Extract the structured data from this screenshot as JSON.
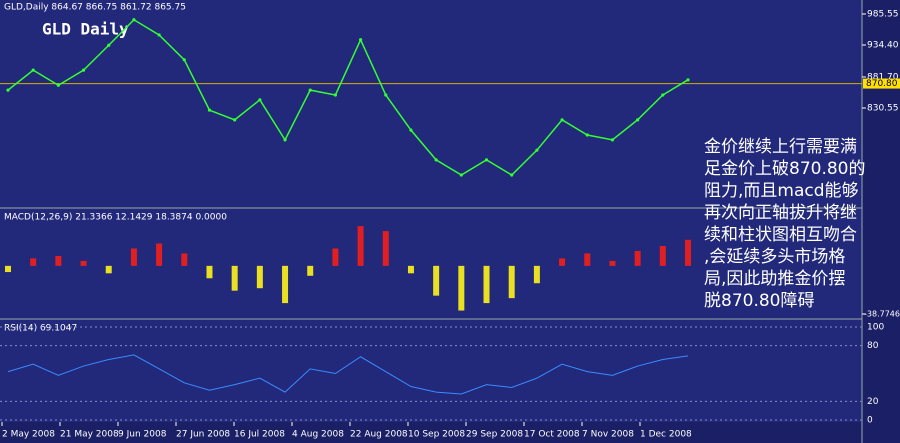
{
  "header": "GLD,Daily  864.67 866.75 861.72 865.75",
  "title": "GLD Daily",
  "price": {
    "ylim": [
      667.3,
      1005.3
    ],
    "yticks": [
      985.55,
      {
        "value": 934.4,
        "label": "934.40"
      },
      {
        "value": 881.7,
        "label": "881.70"
      },
      830.55
    ],
    "level": {
      "value": 870.8,
      "label": "870.80"
    },
    "color": "#33ff33",
    "values": [
      860,
      893,
      868,
      893,
      934,
      976,
      951,
      910,
      827,
      811,
      844,
      778,
      860,
      852,
      943,
      852,
      794,
      745,
      720,
      745,
      720,
      761,
      811,
      786,
      778,
      811,
      852,
      877
    ]
  },
  "macd": {
    "label": "MACD(12,26,9) 21.3366 12.1429 18.3874 0.0000",
    "ylim": [
      -42,
      45
    ],
    "yticks": [
      -38.7746
    ],
    "values": [
      -5,
      6,
      8,
      4,
      -6,
      14,
      18,
      10,
      -10,
      -20,
      -18,
      -30,
      -8,
      14,
      32,
      28,
      -6,
      -24,
      -36,
      -30,
      -26,
      -14,
      6,
      10,
      4,
      12,
      16,
      21
    ]
  },
  "rsi": {
    "label": "RSI(14) 69.1047",
    "ylim": [
      0,
      100
    ],
    "yticks": [
      100,
      80,
      20,
      0
    ],
    "values": [
      52,
      60,
      48,
      58,
      65,
      70,
      55,
      40,
      32,
      38,
      45,
      30,
      55,
      50,
      68,
      52,
      36,
      30,
      28,
      38,
      35,
      45,
      60,
      52,
      48,
      58,
      65,
      69
    ]
  },
  "dates": [
    "2 May 2008",
    "21 May 2008",
    "9 Jun 2008",
    "27 Jun 2008",
    "16 Jul 2008",
    "4 Aug 2008",
    "22 Aug 2008",
    "10 Sep 2008",
    "29 Sep 2008",
    "17 Oct 2008",
    "7 Nov 2008",
    "1 Dec 2008"
  ],
  "note": [
    "金价继续上行需要满",
    "足金价上破870.80的",
    "阻力,而且macd能够",
    "再次向正轴拔升将继",
    "续和柱状图相互吻合",
    ",会延续多头市场格",
    "局,因此助推金价摆",
    "脱870.80障碍"
  ]
}
